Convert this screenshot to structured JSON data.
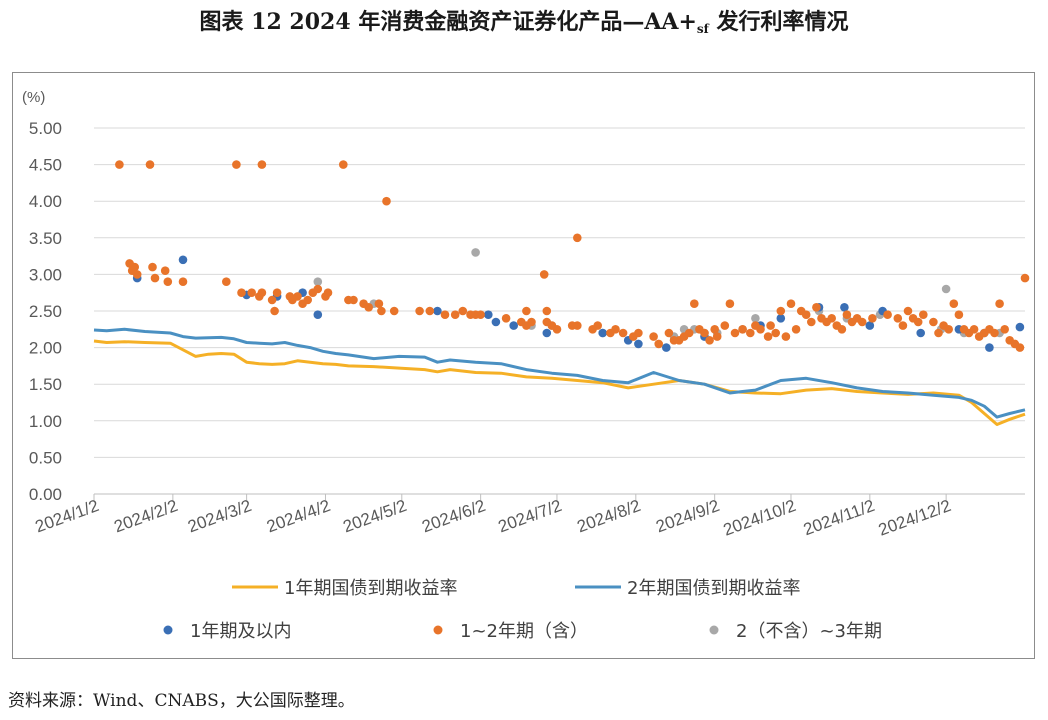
{
  "title_main": "图表 12  2024 年消费金融资产证券化产品—AA+",
  "title_sub": "sf",
  "title_tail": " 发行利率情况",
  "source": "资料来源：Wind、CNABS，大公国际整理。",
  "chart_data": {
    "type": "line",
    "y_unit_label": "(%)",
    "ylim": [
      0,
      5.0
    ],
    "yticks": [
      "0.00",
      "0.50",
      "1.00",
      "1.50",
      "2.00",
      "2.50",
      "3.00",
      "3.50",
      "4.00",
      "4.50",
      "5.00"
    ],
    "x_range_days": [
      0,
      366
    ],
    "x_tick_days": [
      0,
      31,
      60,
      91,
      121,
      152,
      182,
      213,
      244,
      274,
      305,
      335
    ],
    "x_tick_labels": [
      "2024/1/2",
      "2024/2/2",
      "2024/3/2",
      "2024/4/2",
      "2024/5/2",
      "2024/6/2",
      "2024/7/2",
      "2024/8/2",
      "2024/9/2",
      "2024/10/2",
      "2024/11/2",
      "2024/12/2"
    ],
    "colors": {
      "y1": "#f5b026",
      "y2": "#4a90c2",
      "p1": "#3a6fb5",
      "p2": "#e8742a",
      "p3": "#a8a8a8"
    },
    "legend": [
      {
        "label": "1年期国债到期收益率",
        "kind": "line",
        "color": "#f5b026"
      },
      {
        "label": "2年期国债到期收益率",
        "kind": "line",
        "color": "#4a90c2"
      },
      {
        "label": "1年期及以内",
        "kind": "dot",
        "color": "#3a6fb5"
      },
      {
        "label": "1~2年期（含）",
        "kind": "dot",
        "color": "#e8742a"
      },
      {
        "label": "2（不含）~3年期",
        "kind": "dot",
        "color": "#a8a8a8"
      }
    ],
    "series": [
      {
        "name": "1年期国债到期收益率",
        "x": [
          0,
          5,
          12,
          20,
          30,
          40,
          45,
          50,
          55,
          60,
          65,
          70,
          75,
          80,
          85,
          90,
          95,
          100,
          110,
          120,
          130,
          135,
          140,
          150,
          160,
          170,
          180,
          190,
          200,
          210,
          220,
          230,
          240,
          250,
          260,
          270,
          280,
          290,
          300,
          310,
          320,
          330,
          340,
          345,
          350,
          355,
          360,
          366
        ],
        "y": [
          2.09,
          2.07,
          2.08,
          2.07,
          2.06,
          1.88,
          1.91,
          1.92,
          1.91,
          1.8,
          1.78,
          1.77,
          1.78,
          1.82,
          1.8,
          1.78,
          1.77,
          1.75,
          1.74,
          1.72,
          1.7,
          1.67,
          1.7,
          1.66,
          1.65,
          1.6,
          1.58,
          1.55,
          1.52,
          1.45,
          1.5,
          1.55,
          1.5,
          1.4,
          1.38,
          1.37,
          1.42,
          1.44,
          1.4,
          1.38,
          1.36,
          1.38,
          1.35,
          1.25,
          1.1,
          0.95,
          1.02,
          1.09
        ]
      },
      {
        "name": "2年期国债到期收益率",
        "x": [
          0,
          5,
          12,
          20,
          30,
          35,
          40,
          50,
          55,
          60,
          65,
          70,
          75,
          80,
          85,
          90,
          95,
          100,
          110,
          120,
          130,
          135,
          140,
          150,
          160,
          170,
          180,
          190,
          200,
          210,
          220,
          230,
          240,
          250,
          255,
          260,
          270,
          280,
          290,
          300,
          310,
          320,
          330,
          340,
          345,
          350,
          355,
          360,
          366
        ],
        "y": [
          2.24,
          2.23,
          2.25,
          2.22,
          2.2,
          2.15,
          2.13,
          2.14,
          2.12,
          2.07,
          2.06,
          2.05,
          2.07,
          2.03,
          2.0,
          1.95,
          1.92,
          1.9,
          1.85,
          1.88,
          1.87,
          1.8,
          1.83,
          1.8,
          1.78,
          1.7,
          1.65,
          1.62,
          1.55,
          1.52,
          1.66,
          1.55,
          1.5,
          1.38,
          1.4,
          1.42,
          1.55,
          1.58,
          1.52,
          1.45,
          1.4,
          1.38,
          1.35,
          1.32,
          1.28,
          1.2,
          1.05,
          1.1,
          1.15
        ]
      },
      {
        "name": "1年期及以内",
        "points": [
          [
            17,
            2.95
          ],
          [
            35,
            3.2
          ],
          [
            60,
            2.72
          ],
          [
            72,
            2.7
          ],
          [
            82,
            2.75
          ],
          [
            88,
            2.45
          ],
          [
            135,
            2.5
          ],
          [
            155,
            2.45
          ],
          [
            158,
            2.35
          ],
          [
            165,
            2.3
          ],
          [
            178,
            2.2
          ],
          [
            200,
            2.2
          ],
          [
            210,
            2.1
          ],
          [
            214,
            2.05
          ],
          [
            225,
            2.0
          ],
          [
            240,
            2.15
          ],
          [
            262,
            2.3
          ],
          [
            270,
            2.4
          ],
          [
            285,
            2.55
          ],
          [
            295,
            2.55
          ],
          [
            305,
            2.3
          ],
          [
            310,
            2.5
          ],
          [
            325,
            2.2
          ],
          [
            340,
            2.25
          ],
          [
            350,
            2.2
          ],
          [
            352,
            2.0
          ],
          [
            364,
            2.28
          ]
        ]
      },
      {
        "name": "1~2年期（含）",
        "points": [
          [
            10,
            4.5
          ],
          [
            22,
            4.5
          ],
          [
            56,
            4.5
          ],
          [
            66,
            4.5
          ],
          [
            98,
            4.5
          ],
          [
            115,
            4.0
          ],
          [
            190,
            3.5
          ],
          [
            177,
            3.0
          ],
          [
            14,
            3.15
          ],
          [
            16,
            3.1
          ],
          [
            17,
            3.0
          ],
          [
            15,
            3.05
          ],
          [
            23,
            3.1
          ],
          [
            24,
            2.95
          ],
          [
            28,
            3.05
          ],
          [
            29,
            2.9
          ],
          [
            35,
            2.9
          ],
          [
            52,
            2.9
          ],
          [
            58,
            2.75
          ],
          [
            62,
            2.75
          ],
          [
            65,
            2.7
          ],
          [
            66,
            2.75
          ],
          [
            70,
            2.65
          ],
          [
            72,
            2.75
          ],
          [
            71,
            2.5
          ],
          [
            77,
            2.7
          ],
          [
            78,
            2.65
          ],
          [
            80,
            2.7
          ],
          [
            82,
            2.6
          ],
          [
            84,
            2.65
          ],
          [
            86,
            2.75
          ],
          [
            88,
            2.8
          ],
          [
            91,
            2.7
          ],
          [
            92,
            2.75
          ],
          [
            100,
            2.65
          ],
          [
            102,
            2.65
          ],
          [
            106,
            2.6
          ],
          [
            108,
            2.55
          ],
          [
            112,
            2.6
          ],
          [
            113,
            2.5
          ],
          [
            118,
            2.5
          ],
          [
            128,
            2.5
          ],
          [
            132,
            2.5
          ],
          [
            138,
            2.45
          ],
          [
            142,
            2.45
          ],
          [
            145,
            2.5
          ],
          [
            148,
            2.45
          ],
          [
            150,
            2.45
          ],
          [
            152,
            2.45
          ],
          [
            162,
            2.4
          ],
          [
            168,
            2.35
          ],
          [
            170,
            2.3
          ],
          [
            170,
            2.5
          ],
          [
            172,
            2.35
          ],
          [
            178,
            2.35
          ],
          [
            178,
            2.5
          ],
          [
            180,
            2.3
          ],
          [
            182,
            2.25
          ],
          [
            188,
            2.3
          ],
          [
            190,
            2.3
          ],
          [
            196,
            2.25
          ],
          [
            198,
            2.3
          ],
          [
            203,
            2.2
          ],
          [
            205,
            2.25
          ],
          [
            208,
            2.2
          ],
          [
            212,
            2.15
          ],
          [
            214,
            2.2
          ],
          [
            220,
            2.15
          ],
          [
            222,
            2.05
          ],
          [
            226,
            2.2
          ],
          [
            228,
            2.1
          ],
          [
            230,
            2.1
          ],
          [
            232,
            2.15
          ],
          [
            234,
            2.2
          ],
          [
            236,
            2.6
          ],
          [
            238,
            2.25
          ],
          [
            240,
            2.2
          ],
          [
            242,
            2.1
          ],
          [
            244,
            2.25
          ],
          [
            245,
            2.15
          ],
          [
            248,
            2.3
          ],
          [
            250,
            2.6
          ],
          [
            252,
            2.2
          ],
          [
            255,
            2.25
          ],
          [
            258,
            2.2
          ],
          [
            260,
            2.3
          ],
          [
            262,
            2.25
          ],
          [
            265,
            2.15
          ],
          [
            266,
            2.3
          ],
          [
            268,
            2.2
          ],
          [
            270,
            2.5
          ],
          [
            272,
            2.15
          ],
          [
            274,
            2.6
          ],
          [
            276,
            2.25
          ],
          [
            278,
            2.5
          ],
          [
            280,
            2.45
          ],
          [
            282,
            2.35
          ],
          [
            284,
            2.55
          ],
          [
            286,
            2.4
          ],
          [
            288,
            2.35
          ],
          [
            290,
            2.4
          ],
          [
            292,
            2.3
          ],
          [
            294,
            2.25
          ],
          [
            296,
            2.45
          ],
          [
            298,
            2.35
          ],
          [
            300,
            2.4
          ],
          [
            302,
            2.35
          ],
          [
            306,
            2.4
          ],
          [
            312,
            2.45
          ],
          [
            316,
            2.4
          ],
          [
            318,
            2.3
          ],
          [
            320,
            2.5
          ],
          [
            322,
            2.4
          ],
          [
            324,
            2.35
          ],
          [
            326,
            2.45
          ],
          [
            330,
            2.35
          ],
          [
            332,
            2.2
          ],
          [
            334,
            2.3
          ],
          [
            336,
            2.25
          ],
          [
            338,
            2.6
          ],
          [
            340,
            2.45
          ],
          [
            342,
            2.25
          ],
          [
            344,
            2.2
          ],
          [
            346,
            2.25
          ],
          [
            348,
            2.15
          ],
          [
            350,
            2.2
          ],
          [
            352,
            2.25
          ],
          [
            354,
            2.2
          ],
          [
            356,
            2.6
          ],
          [
            358,
            2.25
          ],
          [
            360,
            2.1
          ],
          [
            362,
            2.05
          ],
          [
            364,
            2.0
          ],
          [
            366,
            2.95
          ]
        ]
      },
      {
        "name": "2（不含）~3年期",
        "points": [
          [
            88,
            2.9
          ],
          [
            110,
            2.6
          ],
          [
            150,
            3.3
          ],
          [
            172,
            2.3
          ],
          [
            180,
            2.3
          ],
          [
            200,
            2.2
          ],
          [
            228,
            2.15
          ],
          [
            232,
            2.25
          ],
          [
            236,
            2.25
          ],
          [
            240,
            2.2
          ],
          [
            245,
            2.2
          ],
          [
            255,
            2.25
          ],
          [
            260,
            2.4
          ],
          [
            285,
            2.5
          ],
          [
            296,
            2.4
          ],
          [
            309,
            2.45
          ],
          [
            333,
            2.25
          ],
          [
            335,
            2.8
          ],
          [
            342,
            2.2
          ],
          [
            356,
            2.2
          ]
        ]
      }
    ]
  }
}
